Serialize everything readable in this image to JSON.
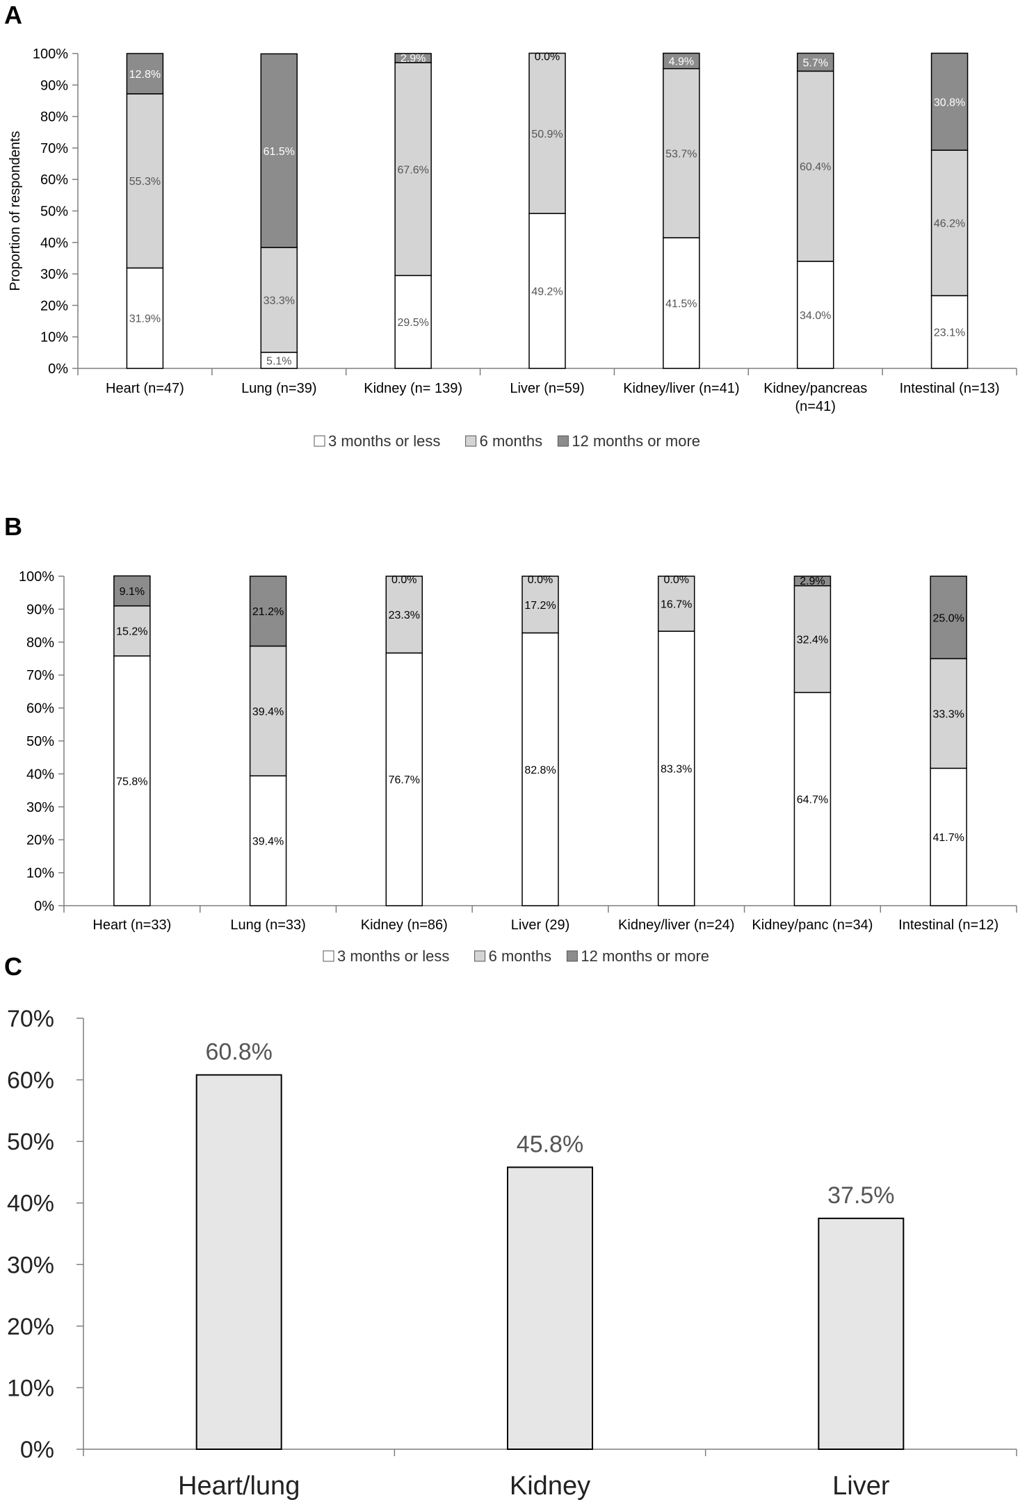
{
  "chart_data": [
    {
      "panel": "A",
      "type": "bar",
      "stacked": true,
      "ylabel": "Proportion of respondents",
      "ylim": [
        0,
        100
      ],
      "yticks": [
        "0%",
        "10%",
        "20%",
        "30%",
        "40%",
        "50%",
        "60%",
        "70%",
        "80%",
        "90%",
        "100%"
      ],
      "categories": [
        [
          "Heart (n=47)"
        ],
        [
          "Lung (n=39)"
        ],
        [
          "Kidney (n= 139)"
        ],
        [
          "Liver (n=59)"
        ],
        [
          "Kidney/liver (n=41)"
        ],
        [
          "Kidney/pancreas",
          "(n=41)"
        ],
        [
          "Intestinal (n=13)"
        ]
      ],
      "series": [
        {
          "name": "3 months or less",
          "color": "#ffffff",
          "label_color": "#555555",
          "values": [
            31.9,
            5.1,
            29.5,
            49.2,
            41.5,
            34.0,
            23.1
          ],
          "labels": [
            "31.9%",
            "5.1%",
            "29.5%",
            "49.2%",
            "41.5%",
            "34.0%",
            "23.1%"
          ]
        },
        {
          "name": "6 months",
          "color": "#d4d4d4",
          "label_color": "#555555",
          "values": [
            55.3,
            33.3,
            67.6,
            50.9,
            53.7,
            60.4,
            46.2
          ],
          "labels": [
            "55.3%",
            "33.3%",
            "67.6%",
            "50.9%",
            "53.7%",
            "60.4%",
            "46.2%"
          ]
        },
        {
          "name": "12 months or more",
          "color": "#8c8c8c",
          "label_color": "#ffffff",
          "values": [
            12.8,
            61.5,
            2.9,
            0.0,
            4.9,
            5.7,
            30.8
          ],
          "labels": [
            "12.8%",
            "61.5%",
            "2.9%",
            "0.0%",
            "4.9%",
            "5.7%",
            "30.8%"
          ]
        }
      ],
      "legend": "bottom"
    },
    {
      "panel": "B",
      "type": "bar",
      "stacked": true,
      "ylabel": "",
      "ylim": [
        0,
        100
      ],
      "yticks": [
        "0%",
        "10%",
        "20%",
        "30%",
        "40%",
        "50%",
        "60%",
        "70%",
        "80%",
        "90%",
        "100%"
      ],
      "categories": [
        [
          "Heart (n=33)"
        ],
        [
          "Lung (n=33)"
        ],
        [
          "Kidney (n=86)"
        ],
        [
          "Liver (29)"
        ],
        [
          "Kidney/liver (n=24)"
        ],
        [
          "Kidney/panc (n=34)"
        ],
        [
          "Intestinal (n=12)"
        ]
      ],
      "series": [
        {
          "name": "3 months or less",
          "color": "#ffffff",
          "label_color": "#000000",
          "values": [
            75.8,
            39.4,
            76.7,
            82.8,
            83.3,
            64.7,
            41.7
          ],
          "labels": [
            "75.8%",
            "39.4%",
            "76.7%",
            "82.8%",
            "83.3%",
            "64.7%",
            "41.7%"
          ]
        },
        {
          "name": "6 months",
          "color": "#d4d4d4",
          "label_color": "#000000",
          "values": [
            15.2,
            39.4,
            23.3,
            17.2,
            16.7,
            32.4,
            33.3
          ],
          "labels": [
            "15.2%",
            "39.4%",
            "23.3%",
            "17.2%",
            "16.7%",
            "32.4%",
            "33.3%"
          ]
        },
        {
          "name": "12 months or more",
          "color": "#8c8c8c",
          "label_color": "#000000",
          "values": [
            9.1,
            21.2,
            0.0,
            0.0,
            0.0,
            2.9,
            25.0
          ],
          "labels": [
            "9.1%",
            "21.2%",
            "0.0%",
            "0.0%",
            "0.0%",
            "2.9%",
            "25.0%"
          ]
        }
      ],
      "legend": "bottom"
    },
    {
      "panel": "C",
      "type": "bar",
      "stacked": false,
      "ylim": [
        0,
        70
      ],
      "yticks": [
        "0%",
        "10%",
        "20%",
        "30%",
        "40%",
        "50%",
        "60%",
        "70%"
      ],
      "categories": [
        "Heart/lung",
        "Kidney",
        "Liver"
      ],
      "values": [
        60.8,
        45.8,
        37.5
      ],
      "labels": [
        "60.8%",
        "45.8%",
        "37.5%"
      ],
      "color": "#e6e6e6"
    }
  ]
}
